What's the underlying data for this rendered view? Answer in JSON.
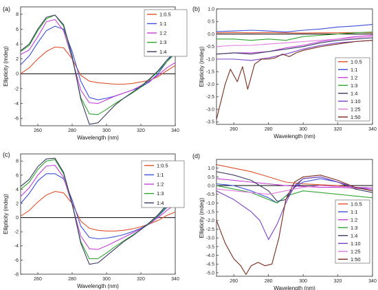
{
  "chart_data": [
    {
      "panel_label": "(a)",
      "type": "line",
      "xlabel": "Wavelength (nm)",
      "ylabel": "Ellipticity (mdeg)",
      "xlim": [
        250,
        340
      ],
      "ylim": [
        -7,
        9
      ],
      "xticks": [
        260,
        280,
        300,
        320,
        340
      ],
      "yticks": [
        -6,
        -4,
        -2,
        0,
        2,
        4,
        6,
        8
      ],
      "legend_position": "top-right",
      "series": [
        {
          "name": "1:0.5",
          "color": "#e0502a",
          "x": [
            250,
            255,
            260,
            265,
            270,
            275,
            280,
            285,
            290,
            295,
            300,
            305,
            310,
            315,
            320,
            325,
            330,
            335,
            340
          ],
          "y": [
            0,
            0.8,
            2.0,
            3.0,
            3.6,
            3.5,
            2.0,
            -0.2,
            -1.0,
            -1.2,
            -1.3,
            -1.4,
            -1.4,
            -1.3,
            -1.1,
            -0.9,
            -0.4,
            0.4,
            1.1
          ]
        },
        {
          "name": "1:1",
          "color": "#3a4fd8",
          "x": [
            250,
            255,
            260,
            265,
            270,
            275,
            280,
            285,
            290,
            295,
            300,
            305,
            310,
            315,
            320,
            325,
            330,
            335,
            340
          ],
          "y": [
            1.2,
            2.4,
            4.2,
            5.8,
            6.4,
            6.0,
            3.0,
            -1.0,
            -3.2,
            -3.5,
            -3.3,
            -3.0,
            -2.6,
            -2.2,
            -1.8,
            -1.1,
            0,
            1.6,
            3.0
          ]
        },
        {
          "name": "1:2",
          "color": "#c43fd8",
          "x": [
            250,
            255,
            260,
            265,
            270,
            275,
            280,
            285,
            290,
            295,
            300,
            305,
            310,
            315,
            320,
            325,
            330,
            335,
            340
          ],
          "y": [
            2.6,
            3.2,
            5.0,
            7.0,
            7.3,
            5.8,
            2.0,
            -2.2,
            -3.9,
            -4.0,
            -3.5,
            -3.0,
            -2.6,
            -2.2,
            -1.6,
            -1.0,
            -0.2,
            0.8,
            1.5
          ]
        },
        {
          "name": "1:3",
          "color": "#2fa52f",
          "x": [
            250,
            255,
            260,
            265,
            270,
            275,
            280,
            285,
            290,
            295,
            300,
            305,
            310,
            315,
            320,
            325,
            330,
            335,
            340
          ],
          "y": [
            3.0,
            3.8,
            5.8,
            7.4,
            7.9,
            6.4,
            2.2,
            -3.2,
            -5.4,
            -5.5,
            -4.8,
            -4.0,
            -3.3,
            -2.6,
            -1.8,
            -0.8,
            0.3,
            1.6,
            2.7
          ]
        },
        {
          "name": "1:4",
          "color": "#383a60",
          "x": [
            250,
            255,
            260,
            265,
            270,
            275,
            280,
            285,
            290,
            295,
            300,
            305,
            310,
            315,
            320,
            325,
            330,
            335,
            340
          ],
          "y": [
            3.1,
            4.0,
            6.0,
            7.6,
            7.9,
            6.6,
            2.4,
            -3.4,
            -6.8,
            -6.6,
            -5.4,
            -4.2,
            -3.3,
            -2.5,
            -1.7,
            -0.7,
            0.4,
            1.8,
            3.0
          ]
        }
      ]
    },
    {
      "panel_label": "(b)",
      "type": "line",
      "xlabel": "Wavelength (nm)",
      "ylabel": "Ellipticity (mdeg)",
      "xlim": [
        250,
        340
      ],
      "ylim": [
        -3.6,
        1.0
      ],
      "xticks": [
        260,
        280,
        300,
        320,
        340
      ],
      "yticks": [
        -3.5,
        -3.0,
        -2.5,
        -2.0,
        -1.5,
        -1.0,
        -0.5,
        0.0,
        0.5,
        1.0
      ],
      "legend_position": "bottom-right",
      "series": [
        {
          "name": "1:0.5",
          "color": "#e0502a",
          "x": [
            250,
            260,
            270,
            280,
            290,
            300,
            310,
            320,
            330,
            340
          ],
          "y": [
            0.05,
            0.06,
            0.05,
            0.06,
            0.05,
            0.04,
            0.05,
            0.05,
            0.06,
            0.05
          ]
        },
        {
          "name": "1:1",
          "color": "#3a4fd8",
          "x": [
            250,
            260,
            270,
            280,
            290,
            300,
            310,
            320,
            330,
            340
          ],
          "y": [
            0.1,
            0.12,
            0.15,
            0.12,
            0.08,
            0.15,
            0.2,
            0.28,
            0.32,
            0.38
          ]
        },
        {
          "name": "1:2",
          "color": "#c43fd8",
          "x": [
            250,
            260,
            270,
            280,
            290,
            300,
            310,
            320,
            330,
            340
          ],
          "y": [
            -0.8,
            -0.75,
            -0.75,
            -0.7,
            -0.55,
            -0.45,
            -0.3,
            -0.2,
            -0.1,
            -0.05
          ]
        },
        {
          "name": "1:3",
          "color": "#2fa52f",
          "x": [
            250,
            260,
            270,
            280,
            290,
            300,
            310,
            320,
            330,
            340
          ],
          "y": [
            -0.2,
            -0.2,
            -0.25,
            -0.2,
            -0.25,
            -0.1,
            -0.05,
            0,
            0.05,
            0.08
          ]
        },
        {
          "name": "1:4",
          "color": "#383a60",
          "x": [
            250,
            260,
            270,
            280,
            290,
            300,
            310,
            320,
            330,
            340
          ],
          "y": [
            -0.8,
            -0.75,
            -0.8,
            -0.7,
            -0.6,
            -0.5,
            -0.35,
            -0.25,
            -0.2,
            -0.15
          ]
        },
        {
          "name": "1:10",
          "color": "#7a3fc8",
          "x": [
            250,
            260,
            270,
            280,
            290,
            300,
            310,
            320,
            330,
            340
          ],
          "y": [
            -1.0,
            -1.0,
            -1.05,
            -0.95,
            -0.8,
            -0.6,
            -0.45,
            -0.35,
            -0.3,
            -0.25
          ]
        },
        {
          "name": "1:25",
          "color": "#e07ae0",
          "x": [
            250,
            260,
            270,
            280,
            290,
            300,
            310,
            320,
            330,
            340
          ],
          "y": [
            -0.5,
            -0.45,
            -0.45,
            -0.4,
            -0.35,
            -0.3,
            -0.25,
            -0.2,
            -0.15,
            -0.1
          ]
        },
        {
          "name": "1:50",
          "color": "#7a2a1a",
          "x": [
            250,
            255,
            258,
            262,
            265,
            268,
            272,
            276,
            280,
            284,
            288,
            292,
            296,
            300,
            310,
            320,
            330,
            340
          ],
          "y": [
            -3.4,
            -2.0,
            -1.4,
            -1.9,
            -1.3,
            -2.2,
            -1.2,
            -1.0,
            -1.0,
            -0.95,
            -0.8,
            -0.9,
            -0.75,
            -0.65,
            -0.5,
            -0.4,
            -0.3,
            -0.25
          ]
        }
      ]
    },
    {
      "panel_label": "(c)",
      "type": "line",
      "xlabel": "Wavelength (nm)",
      "ylabel": "Ellipticity (mdeg)",
      "xlim": [
        250,
        340
      ],
      "ylim": [
        -8,
        9
      ],
      "xticks": [
        260,
        280,
        300,
        320,
        340
      ],
      "yticks": [
        -8,
        -6,
        -4,
        -2,
        0,
        2,
        4,
        6,
        8
      ],
      "legend_position": "top-right",
      "series": [
        {
          "name": "1:0.5",
          "color": "#e0502a",
          "x": [
            250,
            255,
            260,
            265,
            270,
            275,
            280,
            285,
            290,
            295,
            300,
            305,
            310,
            315,
            320,
            325,
            330,
            335,
            340
          ],
          "y": [
            0.2,
            1.0,
            2.2,
            3.2,
            3.7,
            3.5,
            2.0,
            -0.5,
            -1.5,
            -1.8,
            -1.9,
            -1.9,
            -1.8,
            -1.6,
            -1.3,
            -0.9,
            -0.4,
            0.3,
            0.8
          ]
        },
        {
          "name": "1:1",
          "color": "#3a4fd8",
          "x": [
            250,
            255,
            260,
            265,
            270,
            275,
            280,
            285,
            290,
            295,
            300,
            305,
            310,
            315,
            320,
            325,
            330,
            335,
            340
          ],
          "y": [
            2.0,
            3.4,
            5.2,
            6.2,
            6.2,
            5.5,
            2.5,
            -1.2,
            -2.8,
            -3.0,
            -2.9,
            -2.7,
            -2.4,
            -2.0,
            -1.5,
            -0.8,
            0.2,
            1.4,
            2.6
          ]
        },
        {
          "name": "1:2",
          "color": "#c43fd8",
          "x": [
            250,
            255,
            260,
            265,
            270,
            275,
            280,
            285,
            290,
            295,
            300,
            305,
            310,
            315,
            320,
            325,
            330,
            335,
            340
          ],
          "y": [
            3.0,
            4.2,
            6.0,
            7.3,
            7.4,
            5.7,
            1.8,
            -2.6,
            -4.4,
            -4.5,
            -4.0,
            -3.4,
            -2.8,
            -2.2,
            -1.6,
            -0.9,
            0,
            1.0,
            1.9
          ]
        },
        {
          "name": "1:3",
          "color": "#2fa52f",
          "x": [
            250,
            255,
            260,
            265,
            270,
            275,
            280,
            285,
            290,
            295,
            300,
            305,
            310,
            315,
            320,
            325,
            330,
            335,
            340
          ],
          "y": [
            4.0,
            5.0,
            6.8,
            8.0,
            8.2,
            6.2,
            1.9,
            -3.4,
            -5.8,
            -5.8,
            -5.0,
            -4.1,
            -3.3,
            -2.5,
            -1.7,
            -0.8,
            0.3,
            1.6,
            2.8
          ]
        },
        {
          "name": "1:4",
          "color": "#383a60",
          "x": [
            250,
            255,
            260,
            265,
            270,
            275,
            280,
            285,
            290,
            295,
            300,
            305,
            310,
            315,
            320,
            325,
            330,
            335,
            340
          ],
          "y": [
            4.4,
            5.4,
            7.2,
            8.3,
            8.4,
            6.4,
            2.0,
            -3.6,
            -6.6,
            -6.4,
            -5.4,
            -4.4,
            -3.4,
            -2.6,
            -1.7,
            -0.7,
            0.4,
            1.8,
            3.0
          ]
        }
      ]
    },
    {
      "panel_label": "(d)",
      "type": "line",
      "xlabel": "Wavelength (nm)",
      "ylabel": "Ellipticity (mdeg)",
      "xlim": [
        250,
        340
      ],
      "ylim": [
        -5.2,
        1.5
      ],
      "xticks": [
        260,
        280,
        300,
        320,
        340
      ],
      "yticks": [
        -5.0,
        -4.5,
        -4.0,
        -3.5,
        -3.0,
        -2.5,
        -2.0,
        -1.5,
        -1.0,
        -0.5,
        0.0,
        0.5,
        1.0
      ],
      "legend_position": "bottom-right",
      "series": [
        {
          "name": "1:0.5",
          "color": "#e0502a",
          "x": [
            250,
            260,
            270,
            280,
            290,
            300,
            310,
            320,
            330,
            340
          ],
          "y": [
            1.2,
            1.0,
            0.8,
            0.5,
            0.2,
            0.1,
            0.05,
            0,
            -0.1,
            -0.2
          ]
        },
        {
          "name": "1:1",
          "color": "#3a4fd8",
          "x": [
            250,
            260,
            270,
            280,
            285,
            290,
            295,
            300,
            310,
            320,
            330,
            340
          ],
          "y": [
            0.1,
            0,
            -0.3,
            -0.7,
            -1.0,
            -0.6,
            -0.1,
            0.2,
            0.4,
            0.2,
            -0.1,
            -0.2
          ]
        },
        {
          "name": "1:2",
          "color": "#c43fd8",
          "x": [
            250,
            260,
            270,
            280,
            290,
            300,
            310,
            320,
            330,
            340
          ],
          "y": [
            0.4,
            0.3,
            0.2,
            0.1,
            0.0,
            -0.05,
            -0.1,
            -0.1,
            -0.15,
            -0.2
          ]
        },
        {
          "name": "1:3",
          "color": "#2fa52f",
          "x": [
            250,
            260,
            270,
            280,
            285,
            290,
            300,
            310,
            320,
            330,
            340
          ],
          "y": [
            0,
            -0.2,
            -0.4,
            -0.8,
            -1.0,
            -0.6,
            -0.3,
            -0.4,
            -0.5,
            -0.6,
            -0.7
          ]
        },
        {
          "name": "1:4",
          "color": "#383a60",
          "x": [
            250,
            260,
            270,
            280,
            285,
            290,
            295,
            300,
            310,
            320,
            330,
            340
          ],
          "y": [
            0.8,
            0.6,
            0.3,
            -0.3,
            -0.9,
            -0.8,
            -0.1,
            0.4,
            0.5,
            0.2,
            -0.2,
            -0.4
          ]
        },
        {
          "name": "1:10",
          "color": "#7a3fc8",
          "x": [
            250,
            260,
            270,
            275,
            280,
            285,
            290,
            295,
            300,
            310,
            320,
            330,
            340
          ],
          "y": [
            -0.3,
            -0.8,
            -1.5,
            -2.0,
            -3.1,
            -2.2,
            -1.0,
            0,
            0.4,
            0.5,
            0.2,
            -0.1,
            -0.3
          ]
        },
        {
          "name": "1:25",
          "color": "#e07ae0",
          "x": [
            250,
            260,
            270,
            280,
            290,
            300,
            310,
            320,
            330,
            340
          ],
          "y": [
            -0.2,
            -0.3,
            -0.4,
            -0.5,
            -0.3,
            -0.1,
            0,
            -0.05,
            -0.1,
            -0.1
          ]
        },
        {
          "name": "1:50",
          "color": "#7a2a1a",
          "x": [
            250,
            255,
            260,
            264,
            267,
            270,
            274,
            278,
            282,
            286,
            290,
            295,
            300,
            310,
            320,
            330,
            340
          ],
          "y": [
            -2.0,
            -3.3,
            -4.2,
            -4.6,
            -5.1,
            -4.6,
            -4.4,
            -4.6,
            -4.5,
            -3.0,
            -0.8,
            0.2,
            0.5,
            0.6,
            0.3,
            -0.1,
            -0.3
          ]
        }
      ]
    }
  ]
}
